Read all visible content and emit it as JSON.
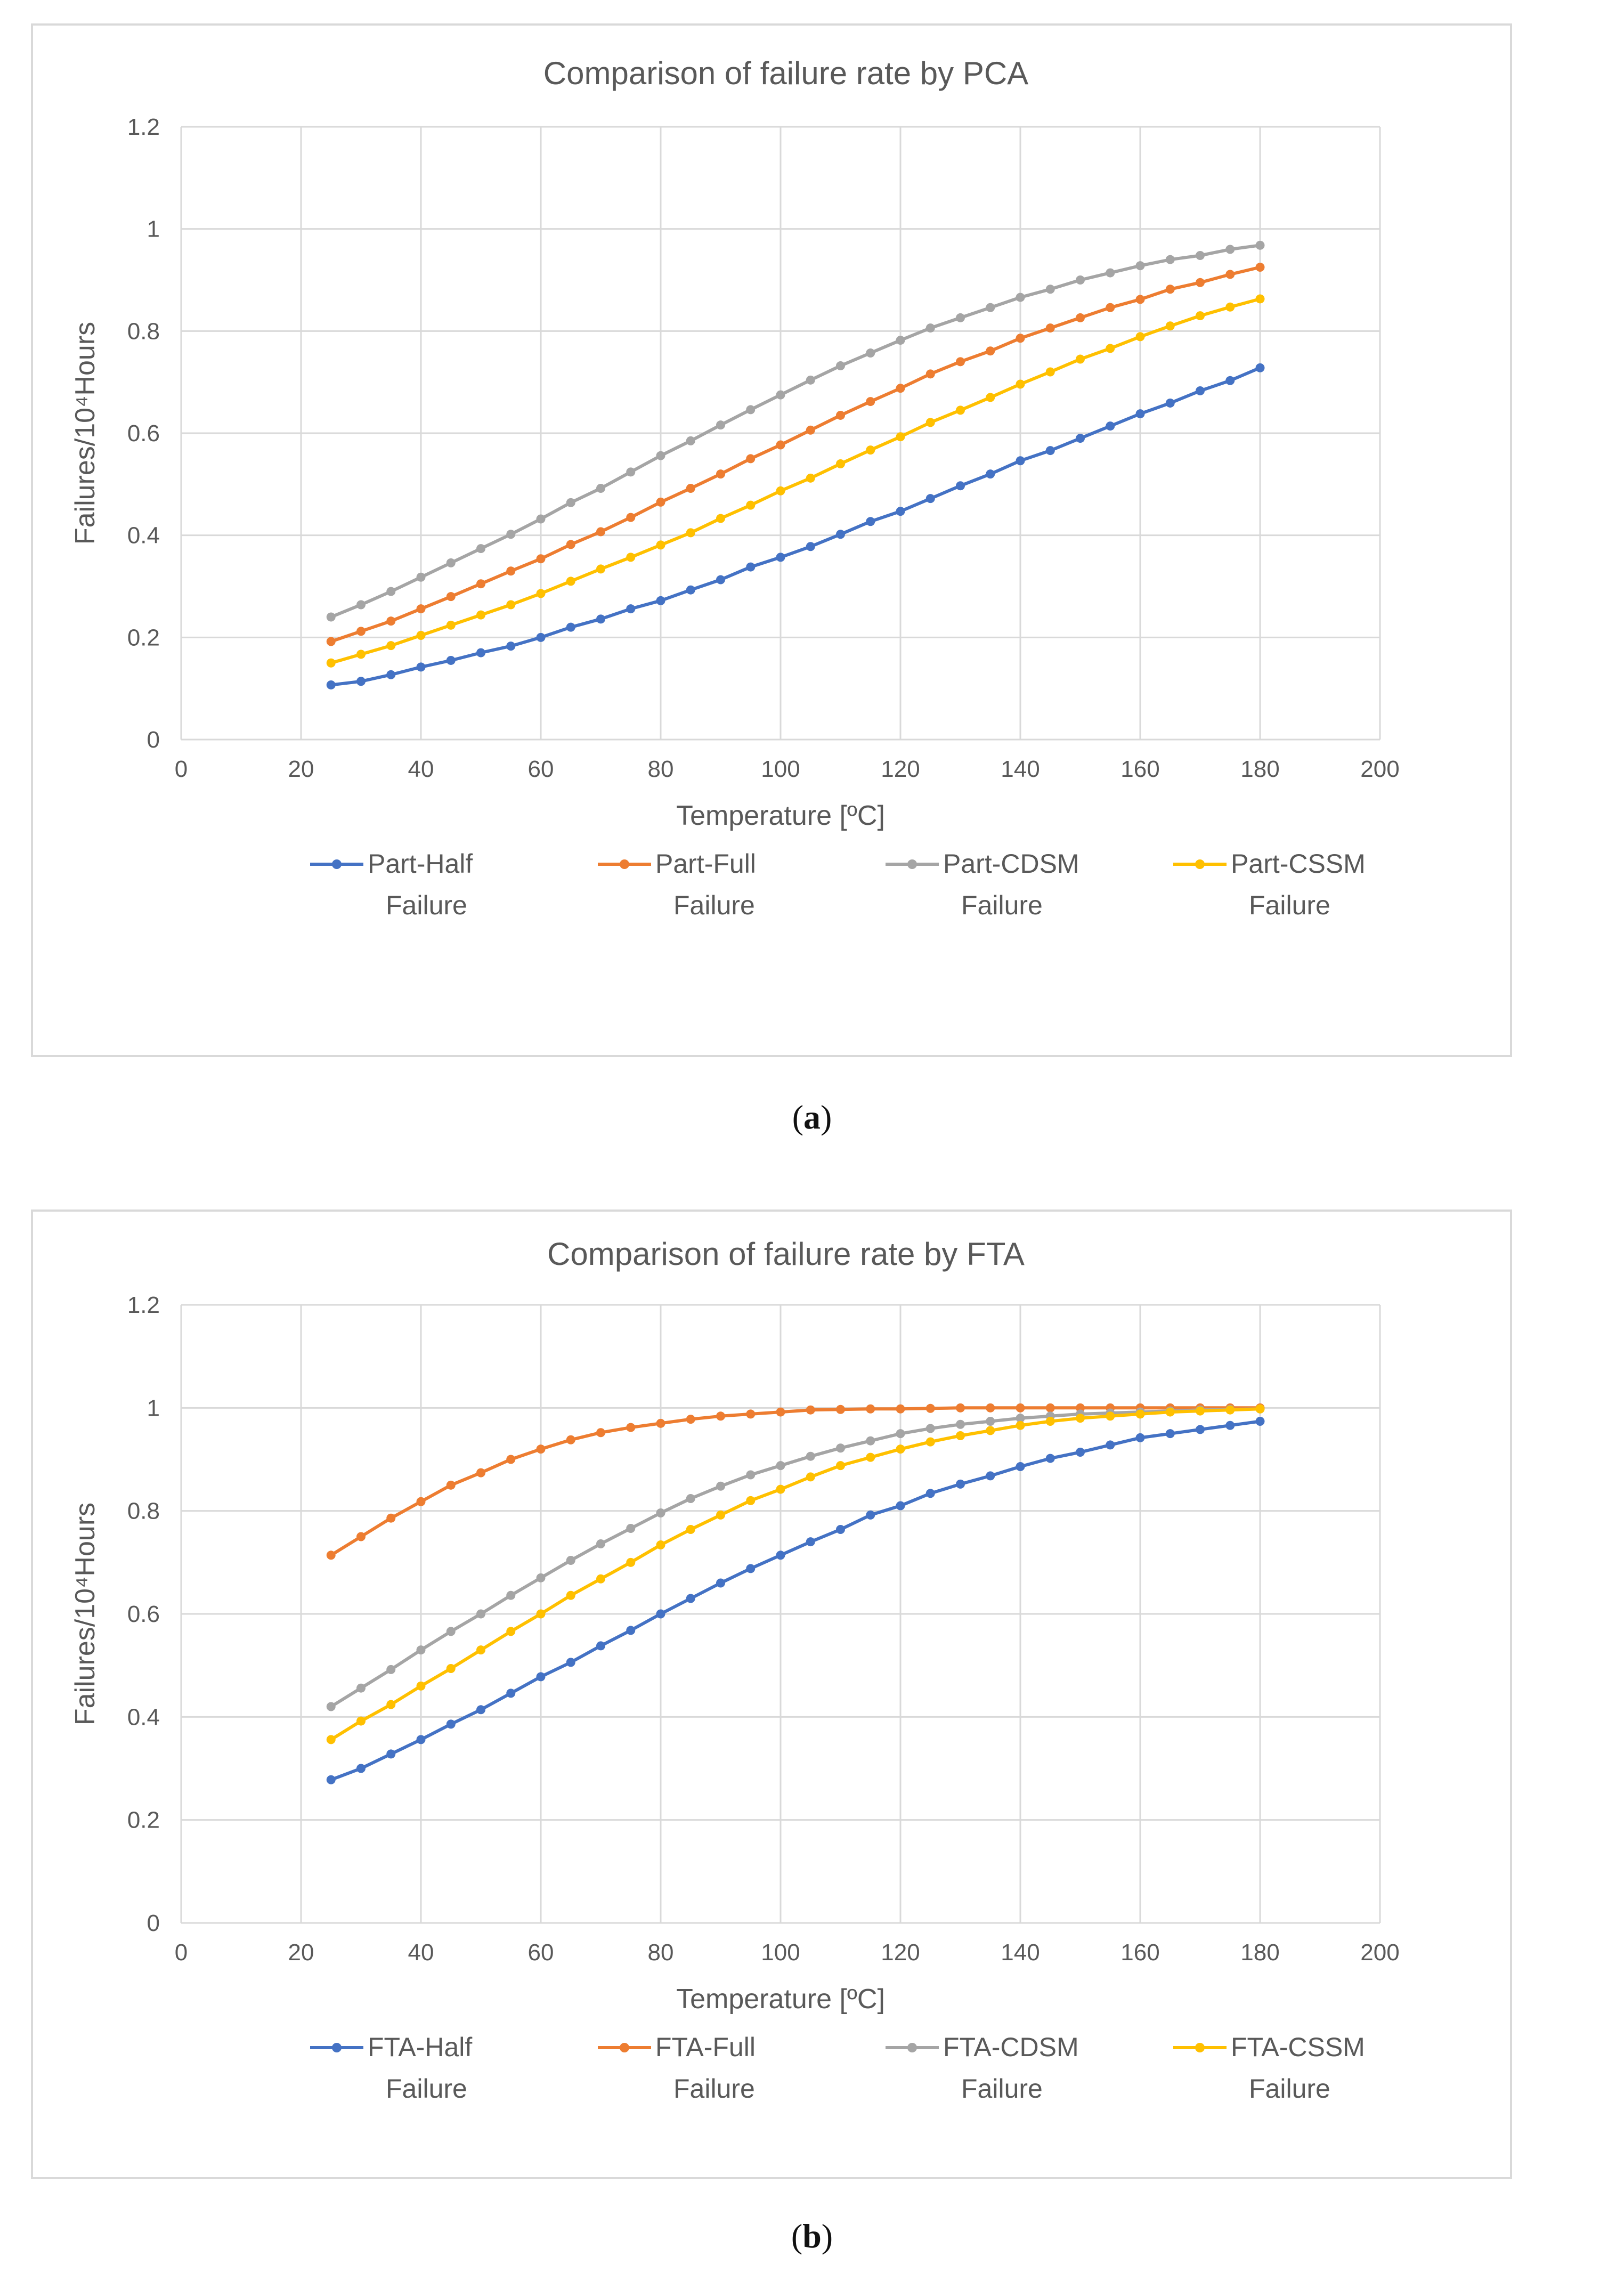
{
  "chart_data": [
    {
      "id": "a",
      "type": "line",
      "title": "Comparison of failure rate by PCA",
      "xlabel": "Temperature [ºC]",
      "ylabel": "Failures/10⁴Hours",
      "xlim": [
        0,
        200
      ],
      "ylim": [
        0,
        1.2
      ],
      "xticks": [
        0,
        20,
        40,
        60,
        80,
        100,
        120,
        140,
        160,
        180,
        200
      ],
      "yticks": [
        0,
        0.2,
        0.4,
        0.6,
        0.8,
        1,
        1.2
      ],
      "grid": true,
      "legend_position": "bottom",
      "x": [
        25,
        30,
        35,
        40,
        45,
        50,
        55,
        60,
        65,
        70,
        75,
        80,
        85,
        90,
        95,
        100,
        105,
        110,
        115,
        120,
        125,
        130,
        135,
        140,
        145,
        150,
        155,
        160,
        165,
        170,
        175,
        180
      ],
      "series": [
        {
          "name": "Part-Half Failure",
          "legend_lines": [
            "Part-Half",
            "Failure"
          ],
          "color": "#4472C4",
          "values": [
            0.107,
            0.114,
            0.127,
            0.142,
            0.155,
            0.17,
            0.183,
            0.2,
            0.22,
            0.236,
            0.256,
            0.272,
            0.293,
            0.313,
            0.338,
            0.357,
            0.378,
            0.402,
            0.427,
            0.447,
            0.472,
            0.497,
            0.52,
            0.546,
            0.566,
            0.59,
            0.614,
            0.638,
            0.659,
            0.683,
            0.703,
            0.728
          ]
        },
        {
          "name": "Part-Full Failure",
          "legend_lines": [
            "Part-Full",
            "Failure"
          ],
          "color": "#ED7D31",
          "values": [
            0.192,
            0.212,
            0.232,
            0.256,
            0.28,
            0.305,
            0.33,
            0.354,
            0.382,
            0.407,
            0.435,
            0.465,
            0.492,
            0.52,
            0.55,
            0.577,
            0.606,
            0.635,
            0.662,
            0.688,
            0.716,
            0.74,
            0.761,
            0.786,
            0.806,
            0.826,
            0.846,
            0.862,
            0.882,
            0.895,
            0.911,
            0.925
          ]
        },
        {
          "name": "Part-CDSM Failure",
          "legend_lines": [
            "Part-CDSM",
            "Failure"
          ],
          "color": "#A5A5A5",
          "values": [
            0.24,
            0.264,
            0.29,
            0.318,
            0.346,
            0.374,
            0.402,
            0.432,
            0.464,
            0.492,
            0.524,
            0.556,
            0.585,
            0.616,
            0.646,
            0.675,
            0.704,
            0.732,
            0.757,
            0.782,
            0.806,
            0.826,
            0.846,
            0.866,
            0.882,
            0.9,
            0.914,
            0.928,
            0.94,
            0.948,
            0.96,
            0.968
          ]
        },
        {
          "name": "Part-CSSM Failure",
          "legend_lines": [
            "Part-CSSM",
            "Failure"
          ],
          "color": "#FFC000",
          "values": [
            0.15,
            0.167,
            0.184,
            0.204,
            0.224,
            0.244,
            0.264,
            0.286,
            0.31,
            0.334,
            0.357,
            0.381,
            0.405,
            0.433,
            0.459,
            0.487,
            0.512,
            0.54,
            0.567,
            0.593,
            0.621,
            0.645,
            0.67,
            0.696,
            0.72,
            0.745,
            0.766,
            0.789,
            0.81,
            0.83,
            0.847,
            0.863
          ]
        }
      ]
    },
    {
      "id": "b",
      "type": "line",
      "title": "Comparison of failure rate by FTA",
      "xlabel": "Temperature [ºC]",
      "ylabel": "Failures/10⁴Hours",
      "xlim": [
        0,
        200
      ],
      "ylim": [
        0,
        1.2
      ],
      "xticks": [
        0,
        20,
        40,
        60,
        80,
        100,
        120,
        140,
        160,
        180,
        200
      ],
      "yticks": [
        0,
        0.2,
        0.4,
        0.6,
        0.8,
        1,
        1.2
      ],
      "grid": true,
      "legend_position": "bottom",
      "x": [
        25,
        30,
        35,
        40,
        45,
        50,
        55,
        60,
        65,
        70,
        75,
        80,
        85,
        90,
        95,
        100,
        105,
        110,
        115,
        120,
        125,
        130,
        135,
        140,
        145,
        150,
        155,
        160,
        165,
        170,
        175,
        180
      ],
      "series": [
        {
          "name": "FTA-Half Failure",
          "legend_lines": [
            "FTA-Half",
            "Failure"
          ],
          "color": "#4472C4",
          "values": [
            0.278,
            0.3,
            0.328,
            0.356,
            0.386,
            0.414,
            0.446,
            0.478,
            0.506,
            0.538,
            0.568,
            0.6,
            0.63,
            0.66,
            0.688,
            0.714,
            0.74,
            0.764,
            0.792,
            0.81,
            0.834,
            0.852,
            0.868,
            0.886,
            0.902,
            0.914,
            0.928,
            0.942,
            0.95,
            0.958,
            0.966,
            0.974
          ]
        },
        {
          "name": "FTA-Full Failure",
          "legend_lines": [
            "FTA-Full",
            "Failure"
          ],
          "color": "#ED7D31",
          "values": [
            0.714,
            0.75,
            0.786,
            0.818,
            0.85,
            0.874,
            0.9,
            0.92,
            0.938,
            0.952,
            0.962,
            0.97,
            0.978,
            0.984,
            0.988,
            0.992,
            0.996,
            0.997,
            0.998,
            0.998,
            0.999,
            1.0,
            1.0,
            1.0,
            1.0,
            1.0,
            1.0,
            1.0,
            1.0,
            1.0,
            1.0,
            1.0
          ]
        },
        {
          "name": "FTA-CDSM Failure",
          "legend_lines": [
            "FTA-CDSM",
            "Failure"
          ],
          "color": "#A5A5A5",
          "values": [
            0.42,
            0.456,
            0.492,
            0.53,
            0.566,
            0.6,
            0.636,
            0.67,
            0.704,
            0.736,
            0.766,
            0.796,
            0.824,
            0.848,
            0.87,
            0.888,
            0.906,
            0.922,
            0.936,
            0.95,
            0.96,
            0.968,
            0.974,
            0.98,
            0.984,
            0.988,
            0.99,
            0.992,
            0.994,
            0.996,
            0.997,
            0.998
          ]
        },
        {
          "name": "FTA-CSSM Failure",
          "legend_lines": [
            "FTA-CSSM",
            "Failure"
          ],
          "color": "#FFC000",
          "values": [
            0.356,
            0.392,
            0.424,
            0.46,
            0.494,
            0.53,
            0.566,
            0.6,
            0.636,
            0.668,
            0.7,
            0.734,
            0.764,
            0.792,
            0.82,
            0.842,
            0.866,
            0.888,
            0.904,
            0.92,
            0.934,
            0.946,
            0.956,
            0.966,
            0.974,
            0.98,
            0.984,
            0.988,
            0.992,
            0.994,
            0.996,
            0.998
          ]
        }
      ]
    }
  ],
  "captions": {
    "a": "a",
    "b": "b"
  }
}
